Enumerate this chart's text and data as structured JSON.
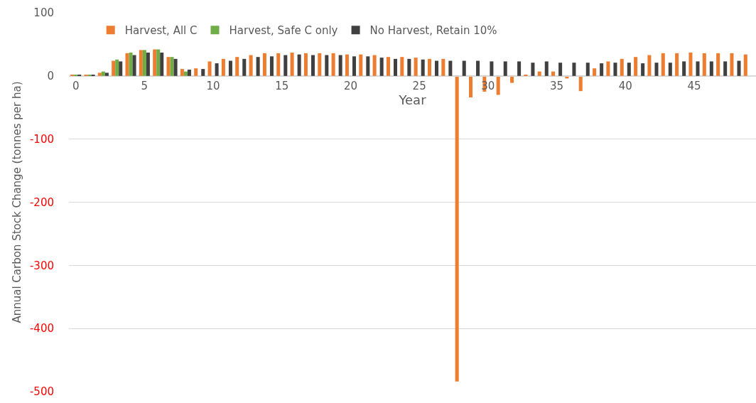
{
  "chart_data": {
    "type": "bar",
    "xlabel": "Year",
    "ylabel": "Annual Carbon Stock Change (tonnes per ha)",
    "categories": [
      "0",
      null,
      null,
      null,
      null,
      "5",
      null,
      null,
      null,
      null,
      "10",
      null,
      null,
      null,
      null,
      "15",
      null,
      null,
      null,
      null,
      "20",
      null,
      null,
      null,
      null,
      "25",
      null,
      null,
      null,
      null,
      "30",
      null,
      null,
      null,
      null,
      "35",
      null,
      null,
      null,
      null,
      "40",
      null,
      null,
      null,
      null,
      "45",
      null,
      null,
      null,
      null
    ],
    "series": [
      {
        "name": "Harvest, All C",
        "color": "#ed7d31",
        "values": [
          1,
          2,
          5,
          24,
          36,
          41,
          42,
          30,
          11,
          12,
          23,
          27,
          30,
          33,
          36,
          36,
          37,
          36,
          36,
          36,
          34,
          34,
          33,
          30,
          30,
          29,
          27,
          27,
          -484,
          -34,
          -25,
          -30,
          -11,
          2,
          7,
          7,
          -4,
          -24,
          12,
          23,
          27,
          30,
          33,
          36,
          36,
          37,
          36,
          36,
          36,
          34
        ]
      },
      {
        "name": "Harvest, Safe C only",
        "color": "#70ad47",
        "values": [
          2,
          2,
          7,
          26,
          37,
          41,
          42,
          30,
          7,
          null,
          null,
          null,
          null,
          null,
          null,
          null,
          null,
          null,
          null,
          null,
          null,
          null,
          null,
          null,
          null,
          null,
          null,
          null,
          null,
          null,
          null,
          null,
          null,
          null,
          null,
          null,
          null,
          null,
          null,
          null,
          null,
          null,
          null,
          null,
          null,
          null,
          null,
          null,
          null,
          null
        ]
      },
      {
        "name": "No Harvest, Retain 10%",
        "color": "#404040",
        "values": [
          1,
          2,
          5,
          23,
          33,
          37,
          37,
          27,
          10,
          11,
          20,
          24,
          27,
          30,
          31,
          33,
          34,
          33,
          33,
          33,
          31,
          31,
          29,
          27,
          27,
          26,
          24,
          24,
          24,
          24,
          23,
          23,
          23,
          21,
          23,
          21,
          21,
          21,
          20,
          21,
          21,
          20,
          21,
          21,
          23,
          23,
          23,
          23,
          24,
          null
        ]
      }
    ],
    "ylim": [
      -500,
      100
    ],
    "yticks": [
      -500,
      -400,
      -300,
      -200,
      -100,
      0,
      100
    ],
    "grid": "y",
    "legend": "top left"
  }
}
